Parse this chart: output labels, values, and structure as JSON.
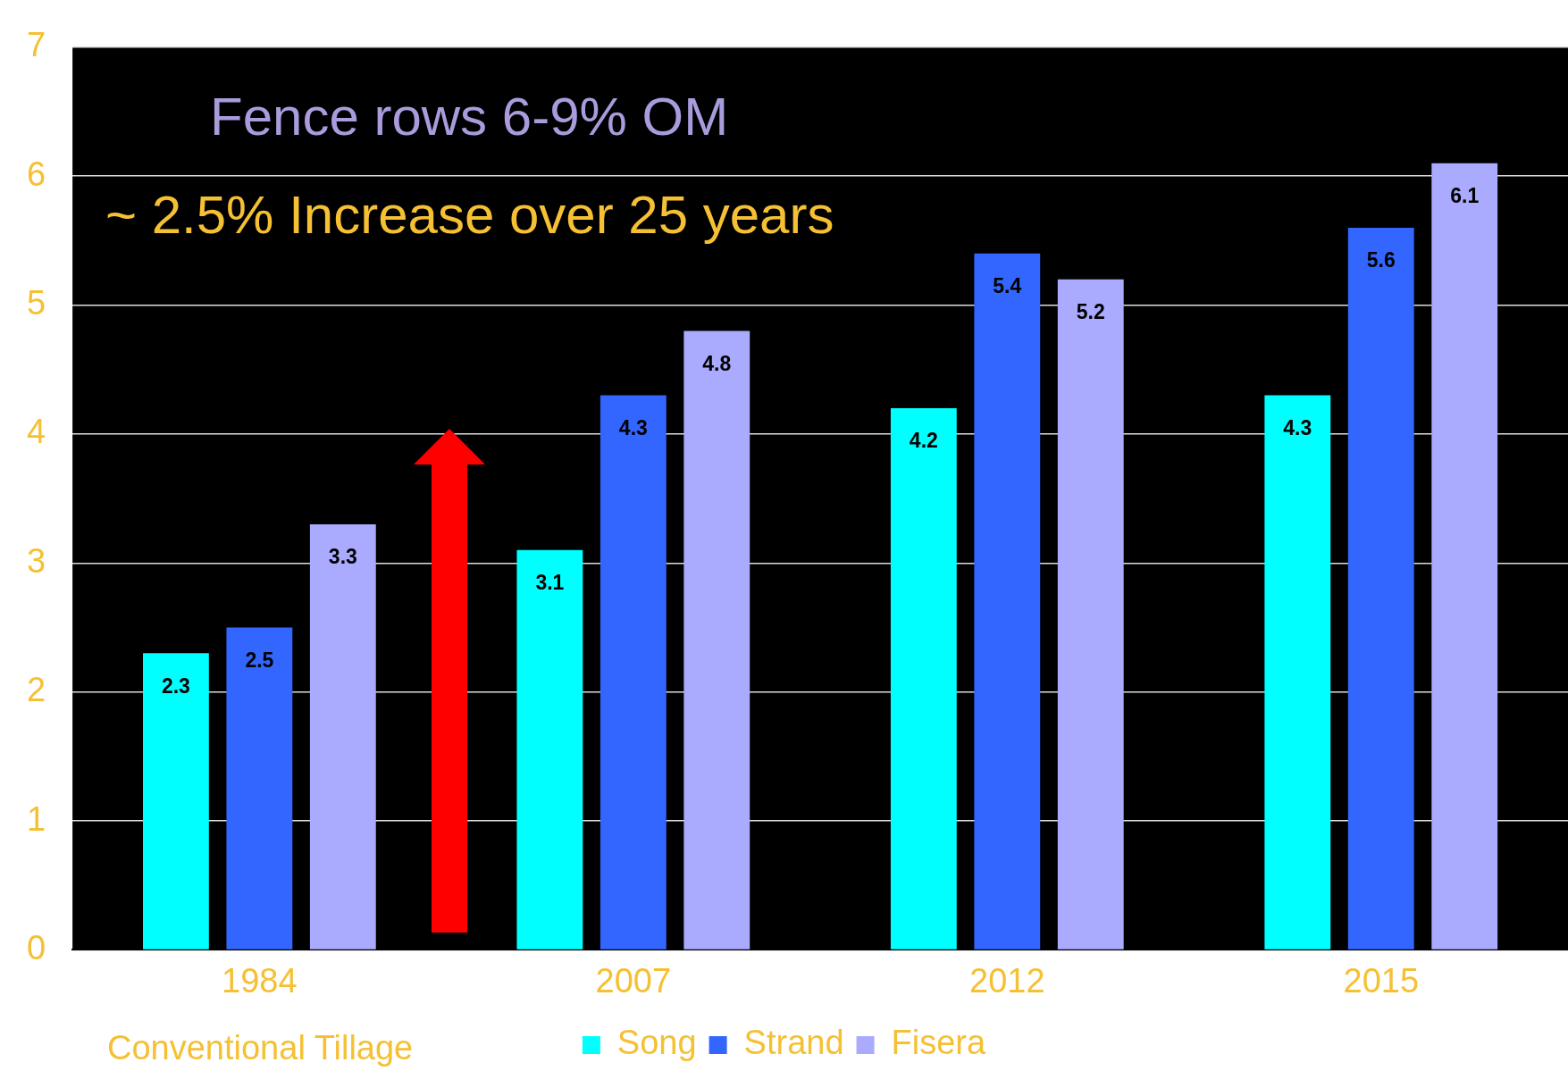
{
  "chart_data": {
    "type": "bar",
    "categories": [
      "1984",
      "2007",
      "2012",
      "2015"
    ],
    "series": [
      {
        "name": "Song",
        "color": "#00ffff",
        "values": [
          2.3,
          3.1,
          4.2,
          4.3
        ]
      },
      {
        "name": "Strand",
        "color": "#3366ff",
        "values": [
          2.5,
          4.3,
          5.4,
          5.6
        ]
      },
      {
        "name": "Fisera",
        "color": "#aaaaff",
        "values": [
          3.3,
          4.8,
          5.2,
          6.1
        ]
      }
    ],
    "ylim": [
      0,
      7
    ],
    "yticks": [
      0,
      1,
      2,
      3,
      4,
      5,
      6,
      7
    ],
    "grid": "y",
    "legend": "bottom",
    "data_labels": true,
    "annotations": [
      "Fence rows 6-9% OM",
      "~ 2.5% Increase over 25 years",
      "Conventional Tillage"
    ]
  }
}
